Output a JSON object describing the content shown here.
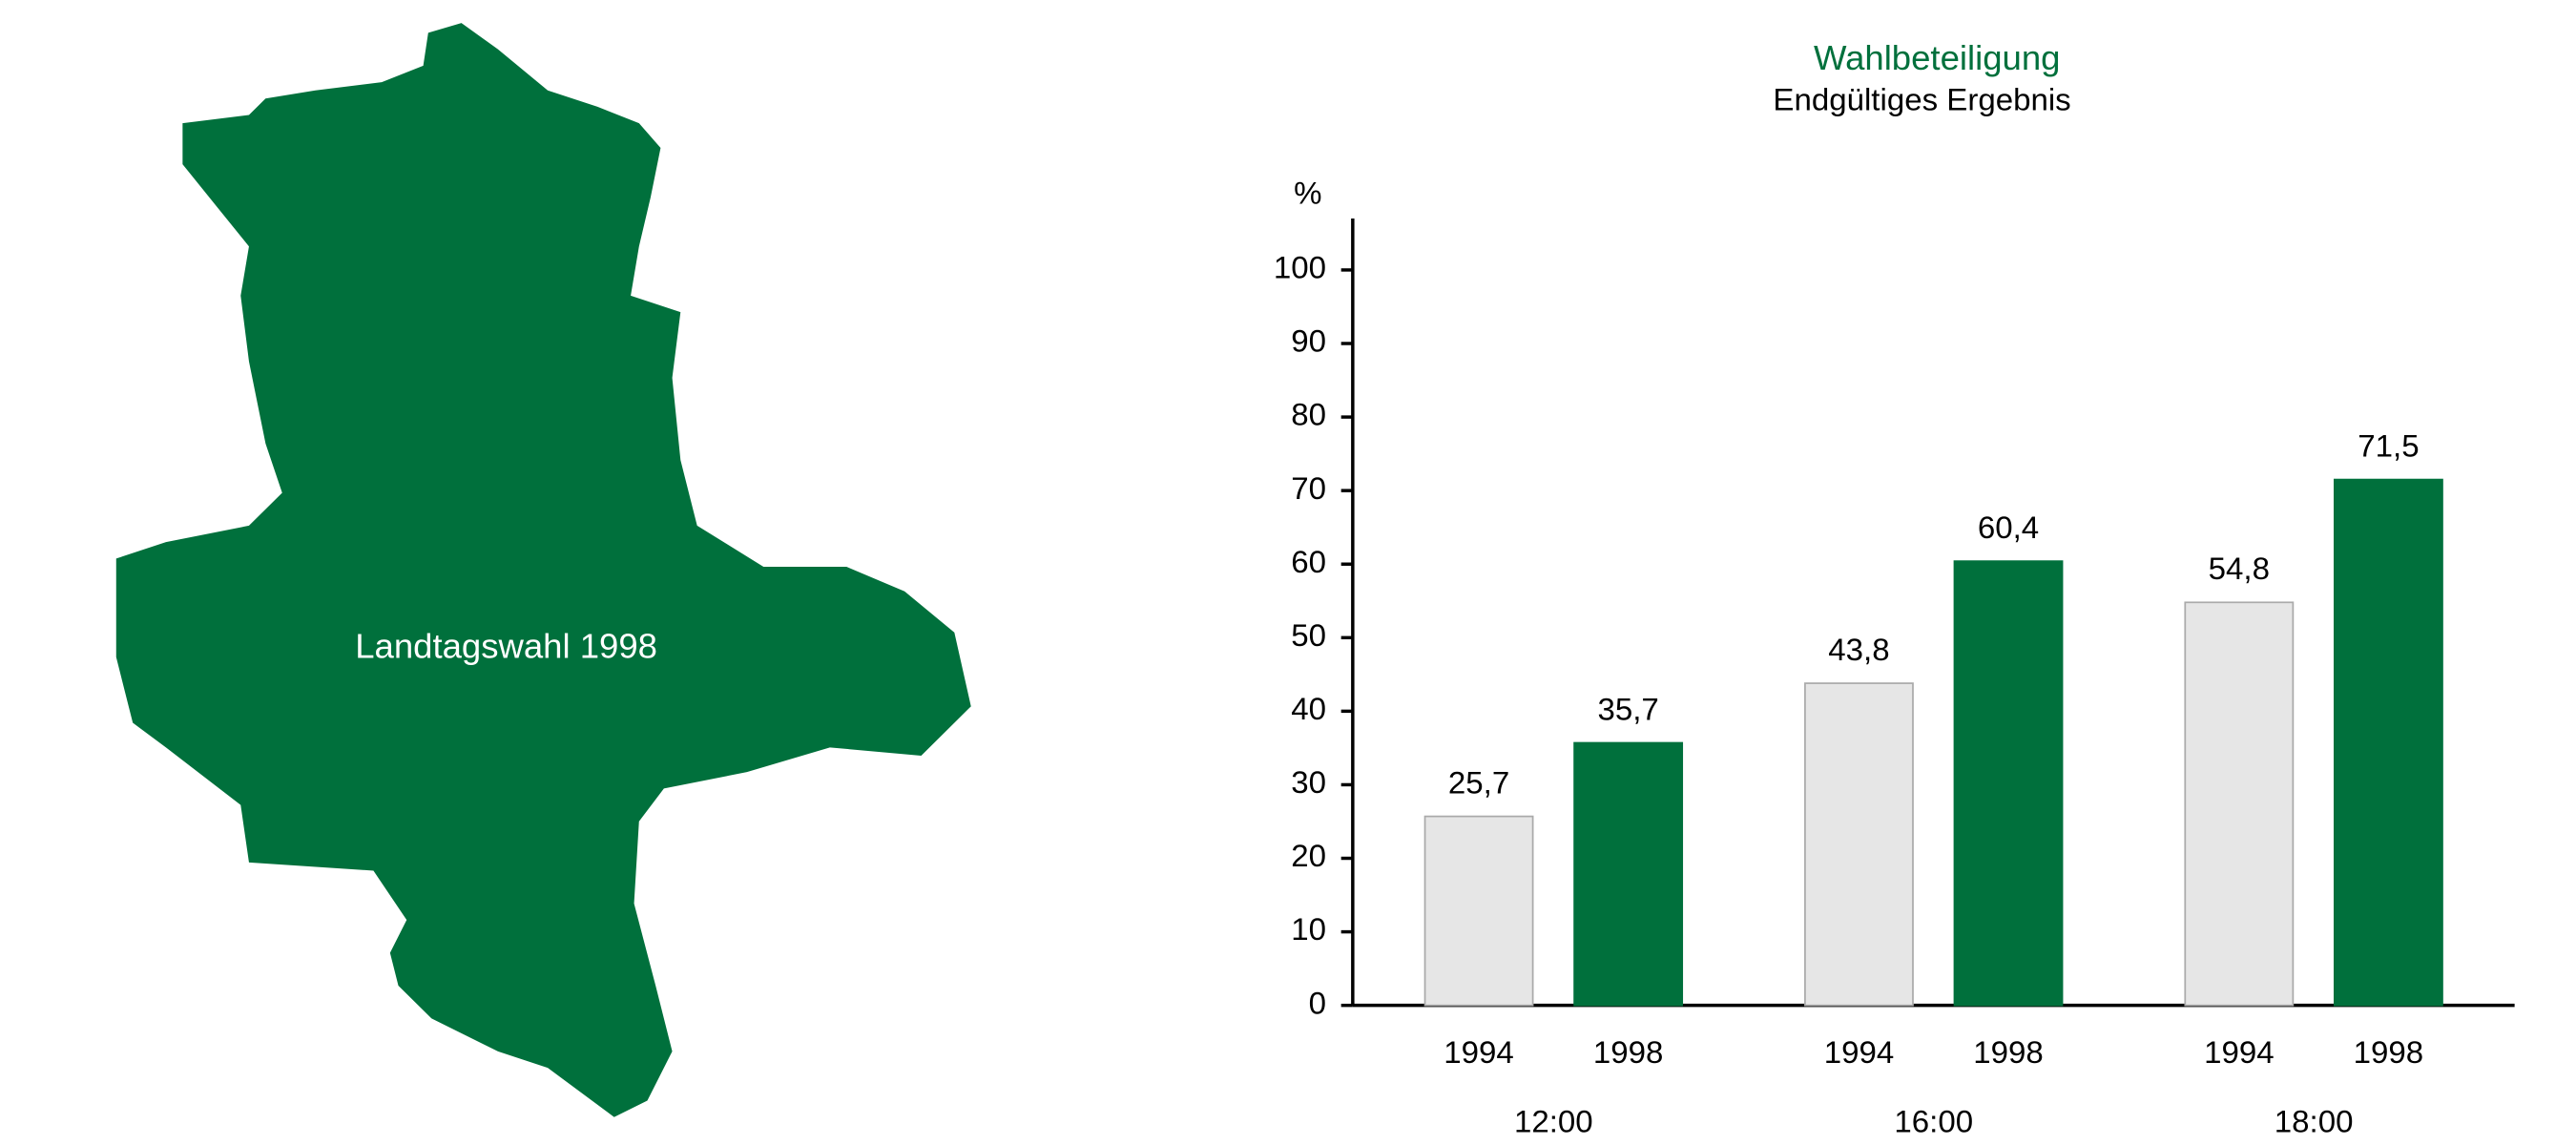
{
  "map_label": "Landtagswahl 1998",
  "chart_data": {
    "type": "bar",
    "title": "Wahlbeteiligung",
    "subtitle": "Endgültiges Ergebnis",
    "y_label": "%",
    "categories": [
      "12:00",
      "16:00",
      "18:00"
    ],
    "series": [
      {
        "name": "1994",
        "color": "#e6e6e6",
        "values": [
          25.7,
          43.8,
          54.8
        ],
        "value_labels": [
          "25,7",
          "43,8",
          "54,8"
        ]
      },
      {
        "name": "1998",
        "color": "#00703c",
        "values": [
          35.7,
          60.4,
          71.5
        ],
        "value_labels": [
          "35,7",
          "60,4",
          "71,5"
        ]
      }
    ],
    "ylim": [
      0,
      107
    ],
    "yticks": [
      0,
      10,
      20,
      30,
      40,
      50,
      60,
      70,
      80,
      90,
      100
    ],
    "grid": false
  }
}
